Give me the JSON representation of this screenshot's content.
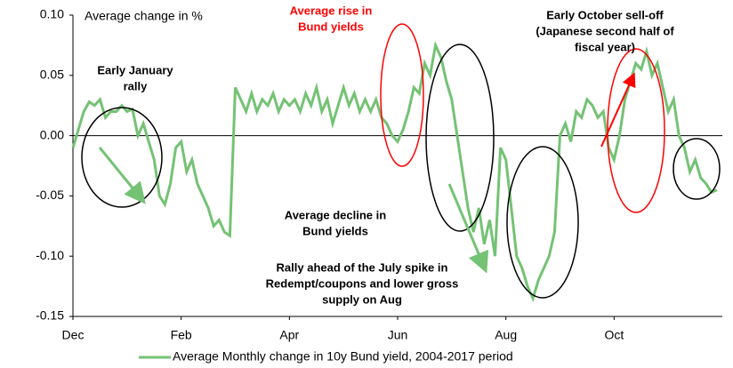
{
  "chart_data": {
    "type": "line",
    "title": "Average change in %",
    "categories": [
      "Dec",
      null,
      null,
      null,
      null,
      null,
      null,
      null,
      null,
      null,
      null,
      null,
      null,
      null,
      null,
      null,
      null,
      null,
      null,
      null,
      "Feb",
      null,
      null,
      null,
      null,
      null,
      null,
      null,
      null,
      null,
      null,
      null,
      null,
      null,
      null,
      null,
      null,
      null,
      null,
      null,
      "Apr",
      null,
      null,
      null,
      null,
      null,
      null,
      null,
      null,
      null,
      null,
      null,
      null,
      null,
      null,
      null,
      null,
      null,
      null,
      null,
      "Jun",
      null,
      null,
      null,
      null,
      null,
      null,
      null,
      null,
      null,
      null,
      null,
      null,
      null,
      null,
      null,
      null,
      null,
      null,
      null,
      "Aug",
      null,
      null,
      null,
      null,
      null,
      null,
      null,
      null,
      null,
      null,
      null,
      null,
      null,
      null,
      null,
      null,
      null,
      null,
      null,
      "Oct",
      null,
      null,
      null,
      null,
      null,
      null,
      null,
      null,
      null,
      null,
      null,
      null,
      null,
      null,
      null,
      null,
      null,
      null,
      null
    ],
    "series": [
      {
        "name": "Average Monthly change in 10y Bund yield, 2004-2017 period",
        "color": "#74c274",
        "values": [
          -0.01,
          0.005,
          0.02,
          0.028,
          0.025,
          0.03,
          0.015,
          0.02,
          0.02,
          0.025,
          0.02,
          0.022,
          0.0,
          0.01,
          -0.005,
          -0.02,
          -0.05,
          -0.057,
          -0.04,
          -0.01,
          -0.005,
          -0.03,
          -0.02,
          -0.04,
          -0.05,
          -0.06,
          -0.075,
          -0.07,
          -0.08,
          -0.083,
          0.04,
          0.03,
          0.02,
          0.035,
          0.02,
          0.03,
          0.025,
          0.035,
          0.02,
          0.03,
          0.025,
          0.03,
          0.02,
          0.035,
          0.025,
          0.04,
          0.02,
          0.03,
          0.01,
          0.025,
          0.04,
          0.025,
          0.035,
          0.02,
          0.03,
          0.02,
          0.03,
          0.015,
          0.01,
          0.0,
          -0.005,
          0.005,
          0.02,
          0.04,
          0.035,
          0.06,
          0.05,
          0.075,
          0.065,
          0.045,
          0.03,
          0.0,
          -0.03,
          -0.06,
          -0.08,
          -0.06,
          -0.09,
          -0.07,
          -0.1,
          -0.01,
          -0.02,
          -0.06,
          -0.1,
          -0.11,
          -0.125,
          -0.135,
          -0.12,
          -0.11,
          -0.1,
          -0.08,
          0.0,
          0.01,
          -0.005,
          0.02,
          0.015,
          0.03,
          0.025,
          0.015,
          0.02,
          -0.01,
          -0.02,
          0.0,
          0.03,
          0.045,
          0.06,
          0.055,
          0.07,
          0.05,
          0.06,
          0.04,
          0.02,
          0.03,
          0.0,
          -0.01,
          -0.03,
          -0.02,
          -0.035,
          -0.04,
          -0.047,
          -0.045
        ]
      }
    ],
    "ylim": [
      -0.15,
      0.1
    ],
    "yticks": [
      {
        "value": -0.15,
        "label": "-0.15"
      },
      {
        "value": -0.1,
        "label": "-0.10"
      },
      -0.05,
      {
        "value": 0,
        "label": "0.00"
      },
      0.05,
      {
        "value": 0.1,
        "label": "0.10"
      }
    ],
    "legend": "bottom",
    "annotations": [
      {
        "lines": [
          "Early January",
          "rally"
        ],
        "color": "#000000"
      },
      {
        "lines": [
          "Average rise in",
          "Bund yields"
        ],
        "color": "#ff0000"
      },
      {
        "lines": [
          "Early October sell-off",
          "(Japanese second half of",
          "fiscal year)"
        ],
        "color": "#000000"
      },
      {
        "lines": [
          "Average decline  in",
          "Bund yields"
        ],
        "color": "#000000"
      },
      {
        "lines": [
          "Rally ahead of the July spike in",
          "Redempt/coupons  and lower gross",
          "supply on Aug"
        ],
        "color": "#000000"
      }
    ]
  }
}
